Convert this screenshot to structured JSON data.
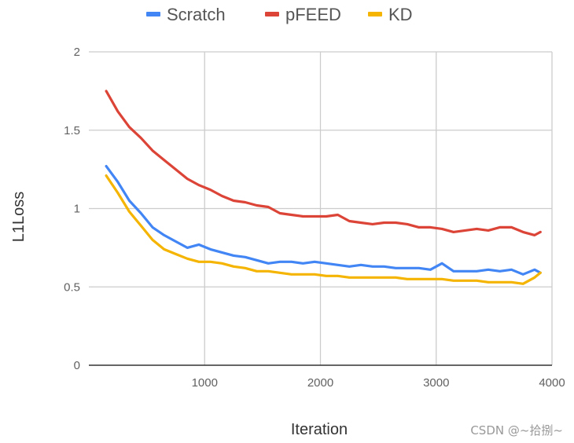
{
  "chart_data": {
    "type": "line",
    "title": "",
    "xlabel": "Iteration",
    "ylabel": "L1Loss",
    "xlim": [
      0,
      4000
    ],
    "ylim": [
      0,
      2
    ],
    "x_ticks": [
      1000,
      2000,
      3000,
      4000
    ],
    "x_tick_labels": [
      "1000",
      "2000",
      "3000",
      "4000"
    ],
    "y_ticks": [
      0,
      0.5,
      1,
      1.5,
      2
    ],
    "y_tick_labels": [
      "0",
      "0.5",
      "1",
      "1.5",
      "2"
    ],
    "grid": true,
    "legend_position": "top",
    "x": [
      150,
      250,
      350,
      450,
      550,
      650,
      750,
      850,
      950,
      1050,
      1150,
      1250,
      1350,
      1450,
      1550,
      1650,
      1750,
      1850,
      1950,
      2050,
      2150,
      2250,
      2350,
      2450,
      2550,
      2650,
      2750,
      2850,
      2950,
      3050,
      3150,
      3250,
      3350,
      3450,
      3550,
      3650,
      3750,
      3850,
      3900
    ],
    "series": [
      {
        "name": "Scratch",
        "color": "#4285F4",
        "values": [
          1.27,
          1.17,
          1.05,
          0.97,
          0.88,
          0.83,
          0.79,
          0.75,
          0.77,
          0.74,
          0.72,
          0.7,
          0.69,
          0.67,
          0.65,
          0.66,
          0.66,
          0.65,
          0.66,
          0.65,
          0.64,
          0.63,
          0.64,
          0.63,
          0.63,
          0.62,
          0.62,
          0.62,
          0.61,
          0.65,
          0.6,
          0.6,
          0.6,
          0.61,
          0.6,
          0.61,
          0.58,
          0.61,
          0.59
        ]
      },
      {
        "name": "pFEED",
        "color": "#DB4437",
        "values": [
          1.75,
          1.62,
          1.52,
          1.45,
          1.37,
          1.31,
          1.25,
          1.19,
          1.15,
          1.12,
          1.08,
          1.05,
          1.04,
          1.02,
          1.01,
          0.97,
          0.96,
          0.95,
          0.95,
          0.95,
          0.96,
          0.92,
          0.91,
          0.9,
          0.91,
          0.91,
          0.9,
          0.88,
          0.88,
          0.87,
          0.85,
          0.86,
          0.87,
          0.86,
          0.88,
          0.88,
          0.85,
          0.83,
          0.85
        ]
      },
      {
        "name": "KD",
        "color": "#F4B400",
        "values": [
          1.21,
          1.1,
          0.98,
          0.89,
          0.8,
          0.74,
          0.71,
          0.68,
          0.66,
          0.66,
          0.65,
          0.63,
          0.62,
          0.6,
          0.6,
          0.59,
          0.58,
          0.58,
          0.58,
          0.57,
          0.57,
          0.56,
          0.56,
          0.56,
          0.56,
          0.56,
          0.55,
          0.55,
          0.55,
          0.55,
          0.54,
          0.54,
          0.54,
          0.53,
          0.53,
          0.53,
          0.52,
          0.56,
          0.59
        ]
      }
    ]
  },
  "watermark": "CSDN @~拾捌~"
}
